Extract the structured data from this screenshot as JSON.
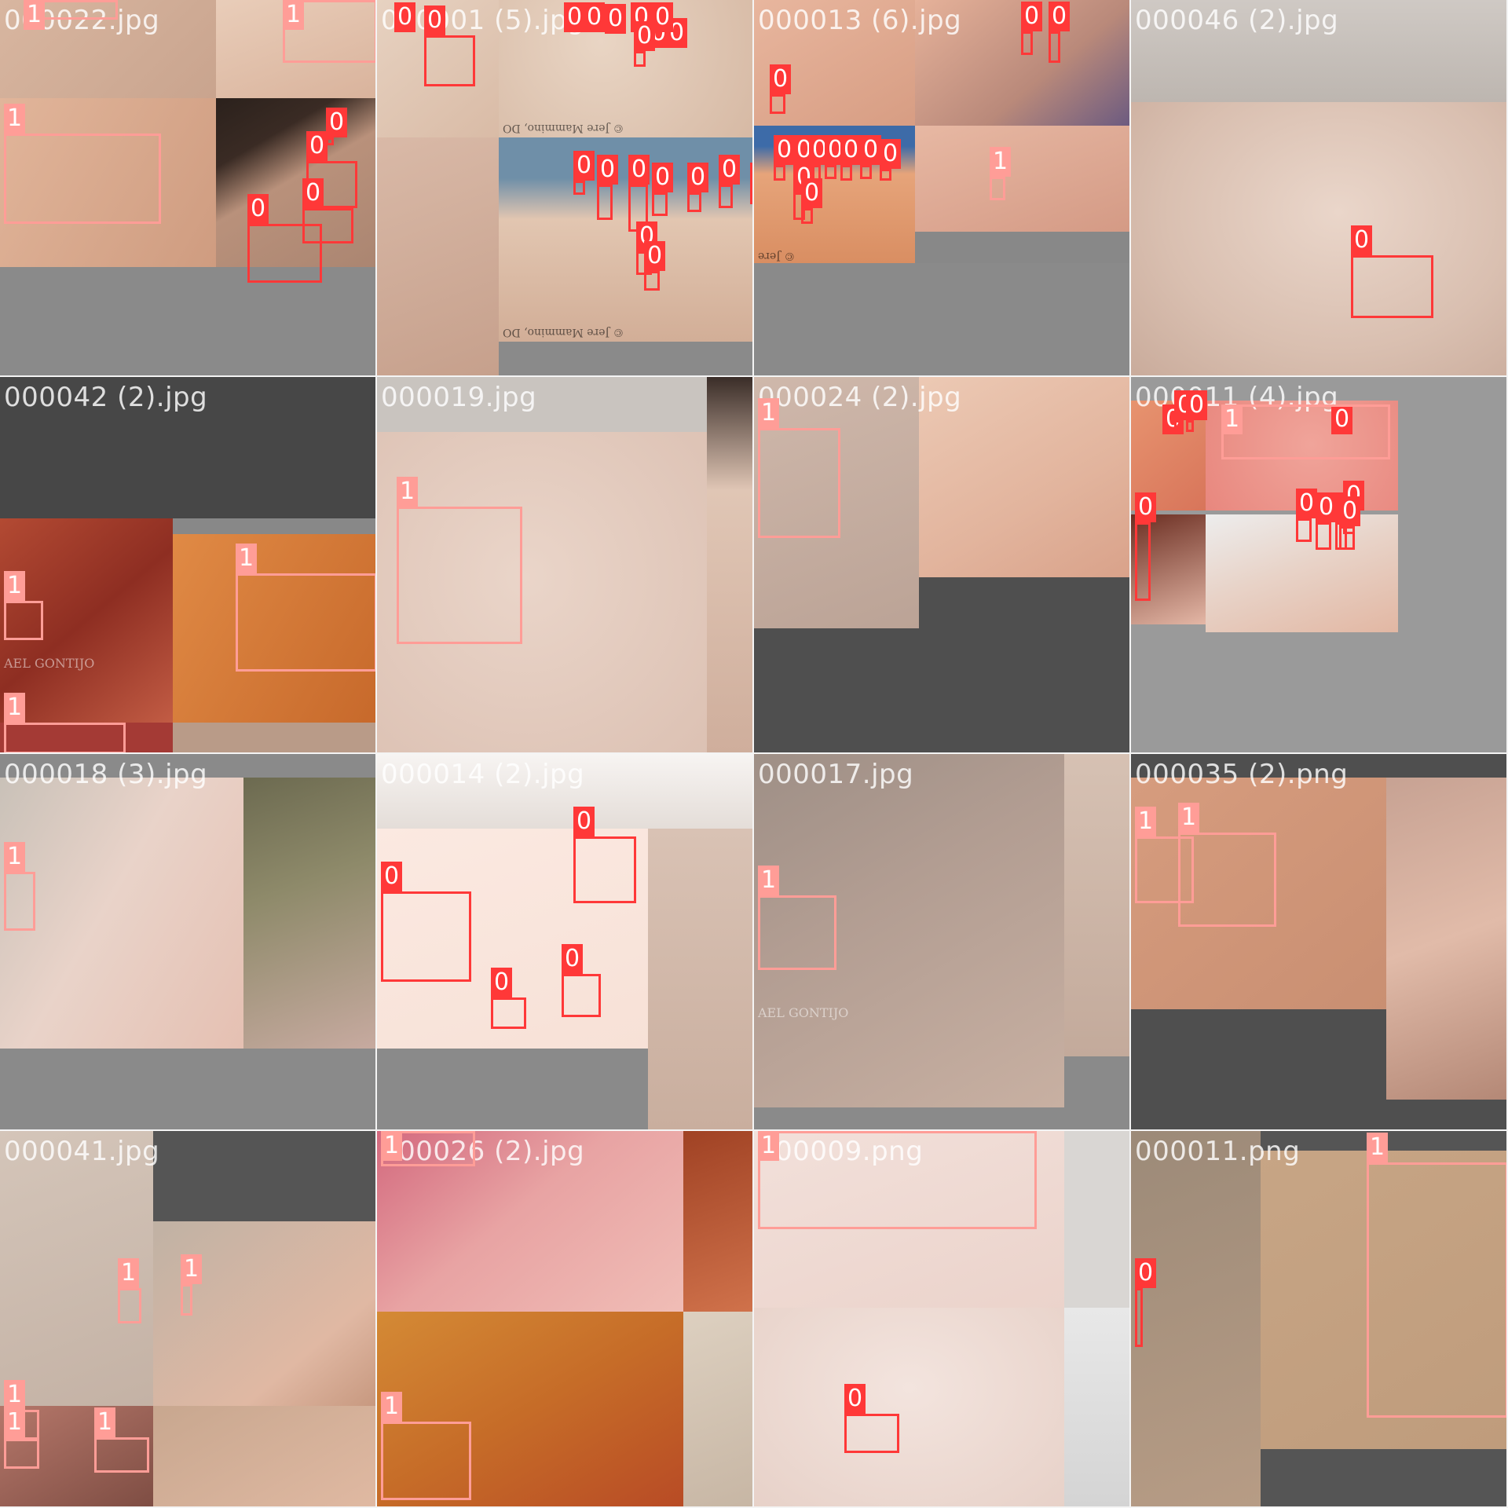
{
  "mosaic": {
    "class_colors": {
      "0": "#ff3838",
      "1": "#ff9d97"
    },
    "tiles": [
      {
        "label": "000022.jpg",
        "watermarks": []
      },
      {
        "label": "000001 (5).jpg",
        "watermarks": [
          "© Jere Mammino, DO",
          "© Jere Mammino, DO"
        ]
      },
      {
        "label": "000013 (6).jpg",
        "watermarks": [
          "© Jere"
        ]
      },
      {
        "label": "000046 (2).jpg",
        "watermarks": []
      },
      {
        "label": "000042 (2).jpg",
        "watermarks": [
          "AEL GONTIJO"
        ]
      },
      {
        "label": "000019.jpg",
        "watermarks": []
      },
      {
        "label": "000024 (2).jpg",
        "watermarks": []
      },
      {
        "label": "000011 (4).jpg",
        "watermarks": []
      },
      {
        "label": "000018 (3).jpg",
        "watermarks": []
      },
      {
        "label": "000014 (2).jpg",
        "watermarks": []
      },
      {
        "label": "000017.jpg",
        "watermarks": [
          "AEL GONTIJO"
        ]
      },
      {
        "label": "000035 (2).png",
        "watermarks": []
      },
      {
        "label": "000041.jpg",
        "watermarks": []
      },
      {
        "label": "000026 (2).jpg",
        "watermarks": []
      },
      {
        "label": "000009.png",
        "watermarks": []
      },
      {
        "label": "000011.png",
        "watermarks": []
      }
    ],
    "boxes": [
      {
        "tile": 0,
        "cls": "1"
      },
      {
        "tile": 0,
        "cls": "1"
      },
      {
        "tile": 0,
        "cls": "1"
      },
      {
        "tile": 0,
        "cls": "0"
      },
      {
        "tile": 0,
        "cls": "0"
      },
      {
        "tile": 0,
        "cls": "0"
      },
      {
        "tile": 0,
        "cls": "0"
      },
      {
        "tile": 1,
        "cls": "0"
      },
      {
        "tile": 1,
        "cls": "0"
      },
      {
        "tile": 1,
        "cls": "0"
      },
      {
        "tile": 1,
        "cls": "0"
      },
      {
        "tile": 1,
        "cls": "0"
      },
      {
        "tile": 1,
        "cls": "0"
      },
      {
        "tile": 1,
        "cls": "0"
      },
      {
        "tile": 1,
        "cls": "0"
      },
      {
        "tile": 1,
        "cls": "0"
      },
      {
        "tile": 1,
        "cls": "0"
      },
      {
        "tile": 1,
        "cls": "0"
      },
      {
        "tile": 1,
        "cls": "0"
      },
      {
        "tile": 1,
        "cls": "0"
      },
      {
        "tile": 1,
        "cls": "0"
      },
      {
        "tile": 1,
        "cls": "0"
      },
      {
        "tile": 1,
        "cls": "0"
      },
      {
        "tile": 1,
        "cls": "0"
      },
      {
        "tile": 1,
        "cls": "0"
      },
      {
        "tile": 1,
        "cls": "0"
      },
      {
        "tile": 2,
        "cls": "0"
      },
      {
        "tile": 2,
        "cls": "0"
      },
      {
        "tile": 2,
        "cls": "0"
      },
      {
        "tile": 2,
        "cls": "0"
      },
      {
        "tile": 2,
        "cls": "0"
      },
      {
        "tile": 2,
        "cls": "0"
      },
      {
        "tile": 2,
        "cls": "0"
      },
      {
        "tile": 2,
        "cls": "0"
      },
      {
        "tile": 2,
        "cls": "0"
      },
      {
        "tile": 2,
        "cls": "0"
      },
      {
        "tile": 2,
        "cls": "0"
      },
      {
        "tile": 2,
        "cls": "0"
      },
      {
        "tile": 2,
        "cls": "1"
      },
      {
        "tile": 3,
        "cls": "0"
      },
      {
        "tile": 4,
        "cls": "1"
      },
      {
        "tile": 4,
        "cls": "1"
      },
      {
        "tile": 4,
        "cls": "1"
      },
      {
        "tile": 5,
        "cls": "1"
      },
      {
        "tile": 6,
        "cls": "1"
      },
      {
        "tile": 7,
        "cls": "0"
      },
      {
        "tile": 7,
        "cls": "0"
      },
      {
        "tile": 7,
        "cls": "0"
      },
      {
        "tile": 7,
        "cls": "0"
      },
      {
        "tile": 7,
        "cls": "1"
      },
      {
        "tile": 7,
        "cls": "0"
      },
      {
        "tile": 7,
        "cls": "0"
      },
      {
        "tile": 7,
        "cls": "0"
      },
      {
        "tile": 7,
        "cls": "0"
      },
      {
        "tile": 7,
        "cls": "0"
      },
      {
        "tile": 7,
        "cls": "0"
      },
      {
        "tile": 8,
        "cls": "1"
      },
      {
        "tile": 9,
        "cls": "0"
      },
      {
        "tile": 9,
        "cls": "0"
      },
      {
        "tile": 9,
        "cls": "0"
      },
      {
        "tile": 9,
        "cls": "0"
      },
      {
        "tile": 10,
        "cls": "1"
      },
      {
        "tile": 11,
        "cls": "1"
      },
      {
        "tile": 11,
        "cls": "1"
      },
      {
        "tile": 12,
        "cls": "1"
      },
      {
        "tile": 12,
        "cls": "1"
      },
      {
        "tile": 12,
        "cls": "1"
      },
      {
        "tile": 12,
        "cls": "1"
      },
      {
        "tile": 12,
        "cls": "1"
      },
      {
        "tile": 13,
        "cls": "1"
      },
      {
        "tile": 13,
        "cls": "1"
      },
      {
        "tile": 14,
        "cls": "1"
      },
      {
        "tile": 14,
        "cls": "0"
      },
      {
        "tile": 15,
        "cls": "1"
      },
      {
        "tile": 15,
        "cls": "0"
      }
    ]
  }
}
